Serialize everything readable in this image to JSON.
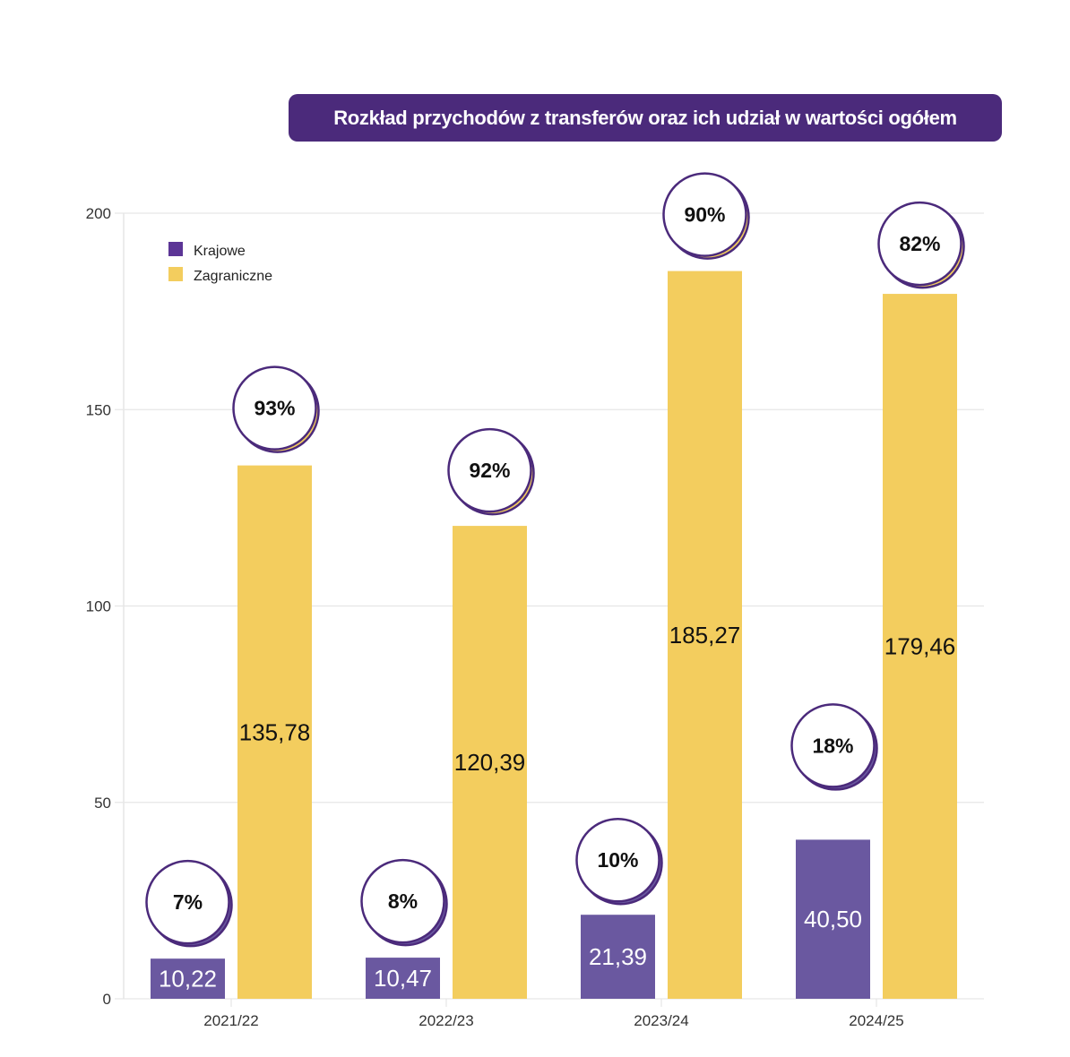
{
  "chart_data": {
    "type": "bar",
    "title": "Rozkład przychodów z transferów oraz ich udział w wartości ogółem",
    "xlabel": "",
    "ylabel": "",
    "ylim": [
      0,
      200
    ],
    "yticks": [
      0,
      50,
      100,
      150,
      200
    ],
    "grid": true,
    "legend_position": "top-left",
    "categories": [
      "2021/22",
      "2022/23",
      "2023/24",
      "2024/25"
    ],
    "series": [
      {
        "name": "Krajowe",
        "color": "#6a58a0",
        "legend_color": "#5c3596",
        "values": [
          10.22,
          10.47,
          21.39,
          40.5
        ],
        "value_labels": [
          "10,22",
          "10,47",
          "21,39",
          "40,50"
        ],
        "share_labels": [
          "7%",
          "8%",
          "10%",
          "18%"
        ]
      },
      {
        "name": "Zagraniczne",
        "color": "#f3cd5e",
        "legend_color": "#f3cd5e",
        "values": [
          135.78,
          120.39,
          185.27,
          179.46
        ],
        "value_labels": [
          "135,78",
          "120,39",
          "185,27",
          "179,46"
        ],
        "share_labels": [
          "93%",
          "92%",
          "90%",
          "82%"
        ]
      }
    ]
  },
  "colors": {
    "title_bg": "#4b2a7b",
    "circle_stroke": "#4b2a7b",
    "grid": "#e6e6e6"
  }
}
